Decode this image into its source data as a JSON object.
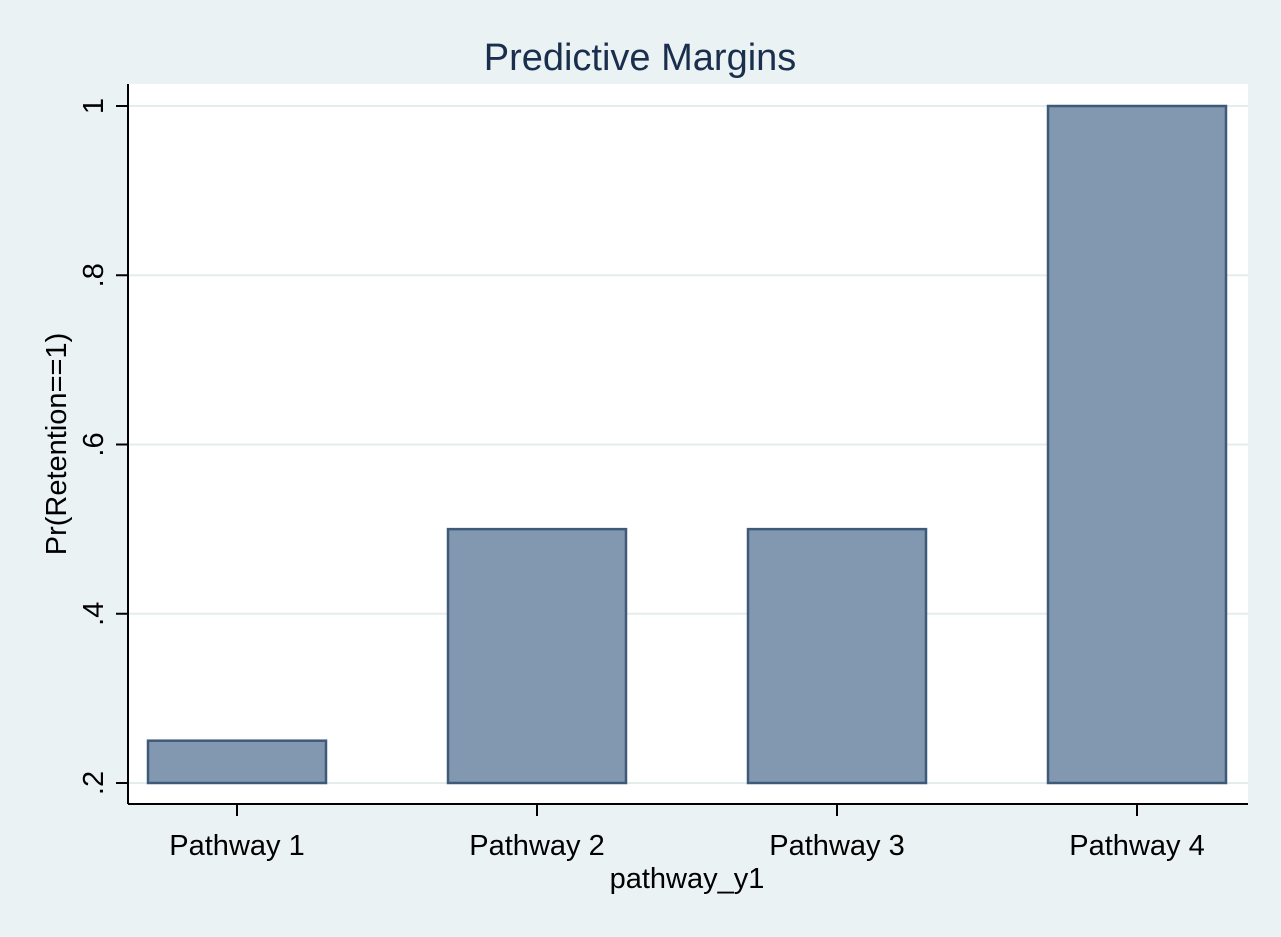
{
  "chart_data": {
    "type": "bar",
    "title": "Predictive Margins",
    "xlabel": "pathway_y1",
    "ylabel": "Pr(Retention==1)",
    "categories": [
      "Pathway 1",
      "Pathway 2",
      "Pathway 3",
      "Pathway 4"
    ],
    "values": [
      0.25,
      0.5,
      0.5,
      1.0
    ],
    "ylim": [
      0.2,
      1.0
    ],
    "yticks": [
      0.2,
      0.4,
      0.6,
      0.8,
      1.0
    ],
    "ytick_labels": [
      ".2",
      ".4",
      ".6",
      ".8",
      "1"
    ],
    "base": 0.2,
    "grid": true,
    "legend": "none"
  },
  "colors": {
    "background": "#eaf2f3",
    "plot_area": "#ffffff",
    "bar_fill": "#8198b0",
    "bar_stroke": "#3e5a78",
    "title": "#1a2f4e",
    "gridline": "#e3eded",
    "axis": "#000000",
    "text": "#000000"
  }
}
